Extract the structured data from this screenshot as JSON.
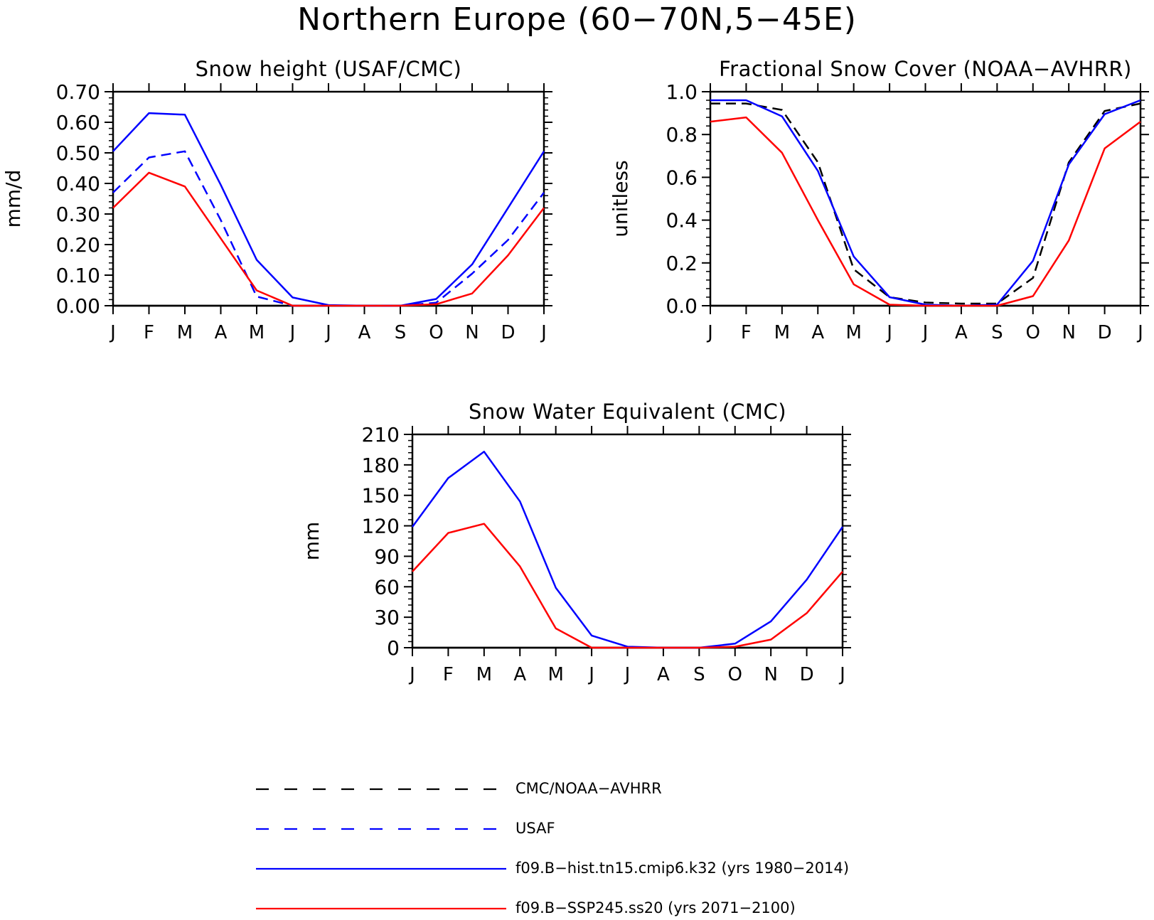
{
  "title": "Northern Europe (60−70N,5−45E)",
  "colors": {
    "obs": "#000000",
    "usaf": "#0000ff",
    "hist": "#0000ff",
    "ssp": "#ff0000",
    "axis": "#000000"
  },
  "chart_data": [
    {
      "type": "line",
      "title": "Snow height (USAF/CMC)",
      "ylabel": "mm/d",
      "xlabel": "",
      "x": [
        "J",
        "F",
        "M",
        "A",
        "M",
        "J",
        "J",
        "A",
        "S",
        "O",
        "N",
        "D",
        "J"
      ],
      "ylim": [
        0,
        0.7
      ],
      "yticks": [
        "0.00",
        "0.10",
        "0.20",
        "0.30",
        "0.40",
        "0.50",
        "0.60",
        "0.70"
      ],
      "series": [
        {
          "name": "USAF",
          "style": "dashed",
          "color": "#0000ff",
          "values": [
            0.37,
            0.485,
            0.505,
            0.28,
            0.03,
            0.0,
            0.0,
            0.0,
            0.0,
            0.01,
            0.105,
            0.215,
            0.37
          ]
        },
        {
          "name": "f09.B−hist.tn15.cmip6.k32 (yrs 1980−2014)",
          "style": "solid",
          "color": "#0000ff",
          "values": [
            0.505,
            0.63,
            0.625,
            0.395,
            0.15,
            0.027,
            0.002,
            0.0,
            0.0,
            0.022,
            0.135,
            0.32,
            0.505
          ]
        },
        {
          "name": "f09.B−SSP245.ss20 (yrs 2071−2100)",
          "style": "solid",
          "color": "#ff0000",
          "values": [
            0.32,
            0.435,
            0.39,
            0.22,
            0.05,
            0.0,
            0.0,
            0.0,
            0.0,
            0.005,
            0.04,
            0.165,
            0.32
          ]
        }
      ]
    },
    {
      "type": "line",
      "title": "Fractional Snow Cover (NOAA−AVHRR)",
      "ylabel": "unitless",
      "xlabel": "",
      "x": [
        "J",
        "F",
        "M",
        "A",
        "M",
        "J",
        "J",
        "A",
        "S",
        "O",
        "N",
        "D",
        "J"
      ],
      "ylim": [
        0,
        1.0
      ],
      "yticks": [
        "0.0",
        "0.2",
        "0.4",
        "0.6",
        "0.8",
        "1.0"
      ],
      "series": [
        {
          "name": "CMC/NOAA−AVHRR",
          "style": "dashed",
          "color": "#000000",
          "values": [
            0.945,
            0.945,
            0.915,
            0.67,
            0.17,
            0.04,
            0.015,
            0.01,
            0.01,
            0.13,
            0.67,
            0.91,
            0.945
          ]
        },
        {
          "name": "f09.B−hist.tn15.cmip6.k32 (yrs 1980−2014)",
          "style": "solid",
          "color": "#0000ff",
          "values": [
            0.96,
            0.96,
            0.885,
            0.63,
            0.23,
            0.04,
            0.005,
            0.0,
            0.005,
            0.21,
            0.66,
            0.895,
            0.96
          ]
        },
        {
          "name": "f09.B−SSP245.ss20 (yrs 2071−2100)",
          "style": "solid",
          "color": "#ff0000",
          "values": [
            0.86,
            0.88,
            0.715,
            0.4,
            0.1,
            0.005,
            0.0,
            0.0,
            0.0,
            0.045,
            0.305,
            0.735,
            0.86
          ]
        }
      ]
    },
    {
      "type": "line",
      "title": "Snow Water Equivalent (CMC)",
      "ylabel": "mm",
      "xlabel": "",
      "x": [
        "J",
        "F",
        "M",
        "A",
        "M",
        "J",
        "J",
        "A",
        "S",
        "O",
        "N",
        "D",
        "J"
      ],
      "ylim": [
        0,
        210
      ],
      "yticks": [
        "0",
        "30",
        "60",
        "90",
        "120",
        "150",
        "180",
        "210"
      ],
      "series": [
        {
          "name": "f09.B−hist.tn15.cmip6.k32 (yrs 1980−2014)",
          "style": "solid",
          "color": "#0000ff",
          "values": [
            119,
            167,
            193,
            144,
            59,
            12,
            1,
            0,
            0,
            4,
            26,
            67,
            119
          ]
        },
        {
          "name": "f09.B−SSP245.ss20 (yrs 2071−2100)",
          "style": "solid",
          "color": "#ff0000",
          "values": [
            75,
            113,
            122,
            80,
            19,
            0,
            0,
            0,
            0,
            1,
            8,
            34,
            75
          ]
        }
      ]
    }
  ],
  "legend": [
    {
      "label": "CMC/NOAA−AVHRR",
      "style": "dashed",
      "color": "#000000"
    },
    {
      "label": "USAF",
      "style": "dashed",
      "color": "#0000ff"
    },
    {
      "label": "f09.B−hist.tn15.cmip6.k32 (yrs 1980−2014)",
      "style": "solid",
      "color": "#0000ff"
    },
    {
      "label": "f09.B−SSP245.ss20 (yrs 2071−2100)",
      "style": "solid",
      "color": "#ff0000"
    }
  ]
}
